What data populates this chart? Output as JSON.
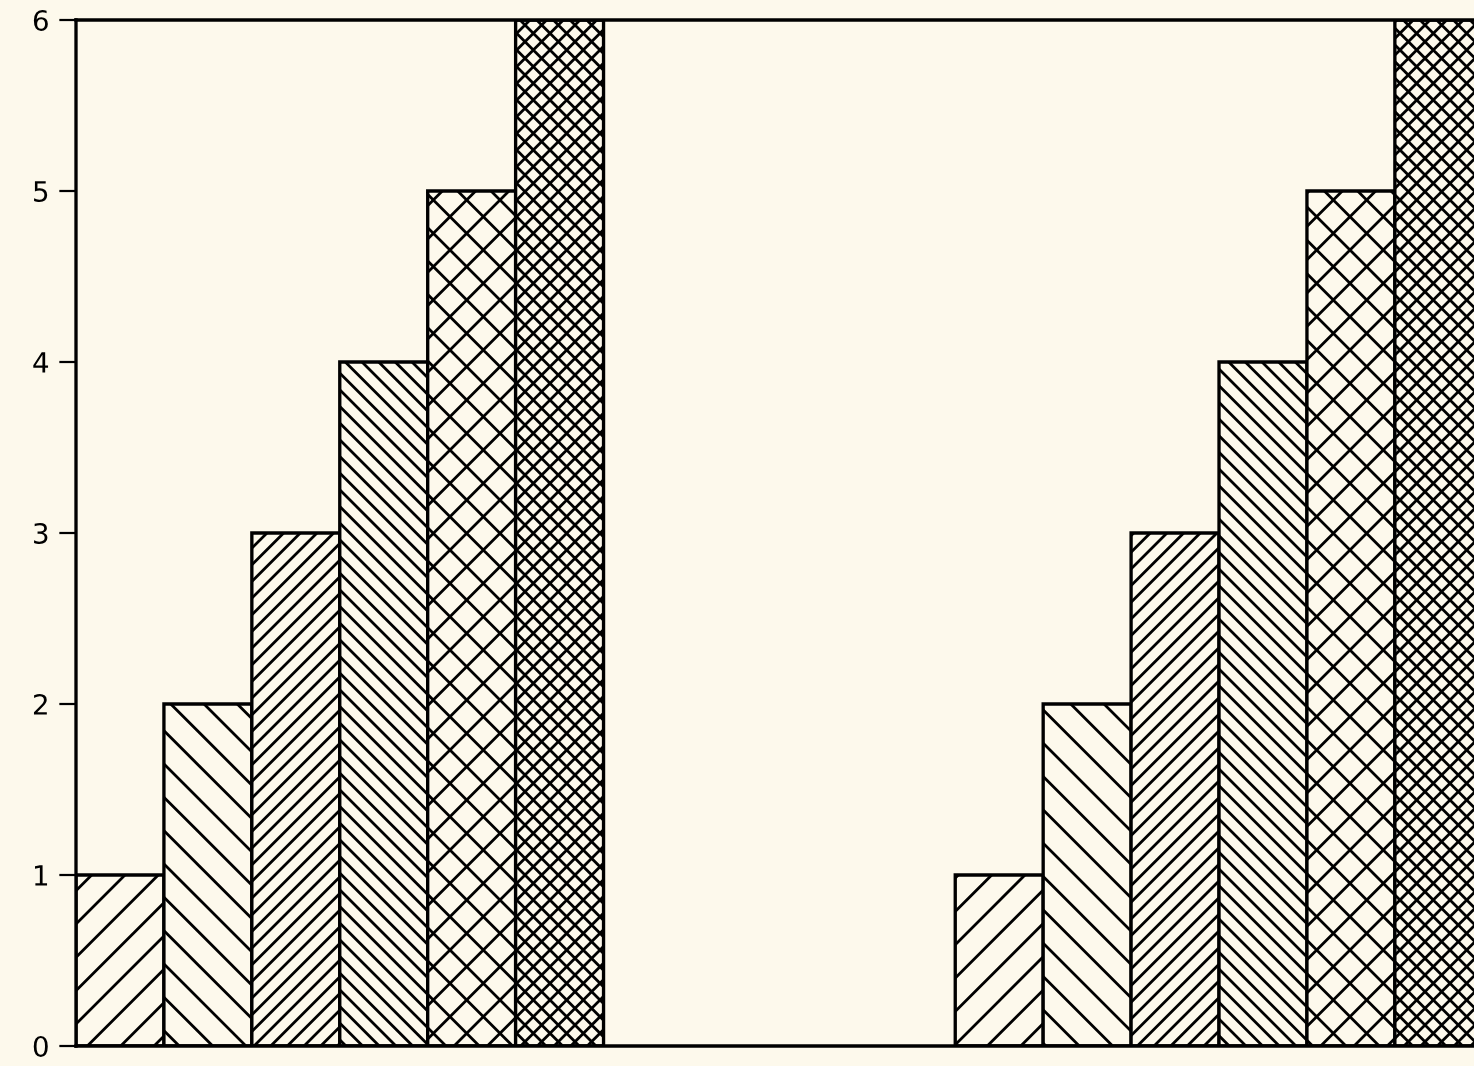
{
  "chart_data": {
    "type": "bar",
    "categories": [
      null,
      null,
      null,
      null,
      null,
      null,
      null,
      null,
      null,
      null,
      null,
      null,
      null,
      null,
      null,
      null
    ],
    "values": [
      1,
      2,
      3,
      4,
      5,
      6,
      null,
      null,
      null,
      null,
      1,
      2,
      3,
      4,
      5,
      6
    ],
    "color": "#000000",
    "ylim": [
      0,
      6
    ],
    "yticks": [
      0,
      1,
      2,
      3,
      4,
      5,
      6
    ],
    "grid": false,
    "legend": false
  }
}
